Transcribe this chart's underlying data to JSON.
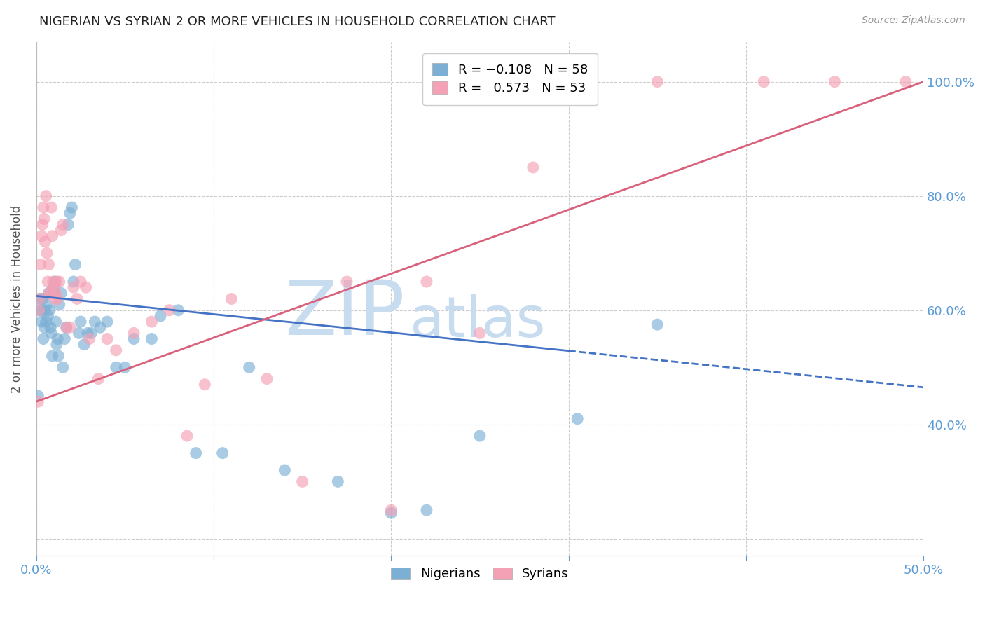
{
  "title": "NIGERIAN VS SYRIAN 2 OR MORE VEHICLES IN HOUSEHOLD CORRELATION CHART",
  "source": "Source: ZipAtlas.com",
  "ylabel": "2 or more Vehicles in Household",
  "xlim": [
    0.0,
    50.0
  ],
  "ylim": [
    17.0,
    107.0
  ],
  "xticks": [
    0.0,
    10.0,
    20.0,
    30.0,
    40.0,
    50.0
  ],
  "xtick_labels": [
    "0.0%",
    "",
    "",
    "",
    "",
    "50.0%"
  ],
  "yticks": [
    20.0,
    40.0,
    60.0,
    80.0,
    100.0
  ],
  "ytick_labels_right": [
    "",
    "40.0%",
    "60.0%",
    "80.0%",
    "100.0%"
  ],
  "nigerian_R": -0.108,
  "nigerian_N": 58,
  "syrian_R": 0.573,
  "syrian_N": 53,
  "nigerian_color": "#7BAFD4",
  "syrian_color": "#F4A0B5",
  "nigerian_line_color": "#4472C4",
  "syrian_line_color": "#D9607A",
  "nigerian_line_intercept": 62.5,
  "nigerian_line_slope": -0.32,
  "nigerian_solid_end": 30.0,
  "syrian_line_intercept": 44.0,
  "syrian_line_slope": 1.12,
  "watermark_zip": "ZIP",
  "watermark_atlas": "atlas",
  "watermark_color": "#C8DCF0",
  "background_color": "#FFFFFF",
  "grid_color": "#CCCCCC",
  "tick_color": "#5B9BD5",
  "legend_color_nigerian": "#7BAFD4",
  "legend_color_syrian": "#F4A0B5",
  "nigerian_x": [
    0.1,
    0.15,
    0.2,
    0.25,
    0.3,
    0.35,
    0.4,
    0.45,
    0.5,
    0.55,
    0.6,
    0.65,
    0.7,
    0.75,
    0.8,
    0.85,
    0.9,
    0.95,
    1.0,
    1.05,
    1.1,
    1.15,
    1.2,
    1.25,
    1.3,
    1.4,
    1.5,
    1.6,
    1.7,
    1.8,
    1.9,
    2.0,
    2.1,
    2.2,
    2.4,
    2.5,
    2.7,
    2.9,
    3.1,
    3.3,
    3.6,
    4.0,
    4.5,
    5.0,
    5.5,
    6.5,
    7.0,
    8.0,
    9.0,
    10.5,
    12.0,
    14.0,
    17.0,
    20.0,
    22.0,
    25.0,
    30.5,
    35.0
  ],
  "nigerian_y": [
    45.0,
    60.0,
    62.0,
    60.0,
    58.0,
    62.0,
    55.0,
    57.0,
    60.0,
    58.0,
    61.0,
    59.0,
    63.0,
    60.0,
    57.0,
    56.0,
    52.0,
    64.0,
    63.0,
    65.0,
    58.0,
    54.0,
    55.0,
    52.0,
    61.0,
    63.0,
    50.0,
    55.0,
    57.0,
    75.0,
    77.0,
    78.0,
    65.0,
    68.0,
    56.0,
    58.0,
    54.0,
    56.0,
    56.0,
    58.0,
    57.0,
    58.0,
    50.0,
    50.0,
    55.0,
    55.0,
    59.0,
    60.0,
    35.0,
    35.0,
    50.0,
    32.0,
    30.0,
    24.5,
    25.0,
    38.0,
    41.0,
    57.5
  ],
  "syrian_x": [
    0.1,
    0.15,
    0.2,
    0.25,
    0.3,
    0.35,
    0.4,
    0.45,
    0.5,
    0.55,
    0.6,
    0.65,
    0.7,
    0.75,
    0.8,
    0.85,
    0.9,
    0.95,
    1.0,
    1.05,
    1.1,
    1.15,
    1.2,
    1.3,
    1.4,
    1.5,
    1.7,
    1.9,
    2.1,
    2.3,
    2.5,
    2.8,
    3.0,
    3.5,
    4.0,
    4.5,
    5.5,
    6.5,
    7.5,
    8.5,
    9.5,
    11.0,
    13.0,
    15.0,
    17.5,
    20.0,
    22.0,
    25.0,
    28.0,
    35.0,
    41.0,
    45.0,
    49.0
  ],
  "syrian_y": [
    44.0,
    60.0,
    62.0,
    68.0,
    73.0,
    75.0,
    78.0,
    76.0,
    72.0,
    80.0,
    70.0,
    65.0,
    68.0,
    63.0,
    63.0,
    78.0,
    73.0,
    65.0,
    64.0,
    62.0,
    63.0,
    65.0,
    62.0,
    65.0,
    74.0,
    75.0,
    57.0,
    57.0,
    64.0,
    62.0,
    65.0,
    64.0,
    55.0,
    48.0,
    55.0,
    53.0,
    56.0,
    58.0,
    60.0,
    38.0,
    47.0,
    62.0,
    48.0,
    30.0,
    65.0,
    25.0,
    65.0,
    56.0,
    85.0,
    100.0,
    100.0,
    100.0,
    100.0
  ]
}
